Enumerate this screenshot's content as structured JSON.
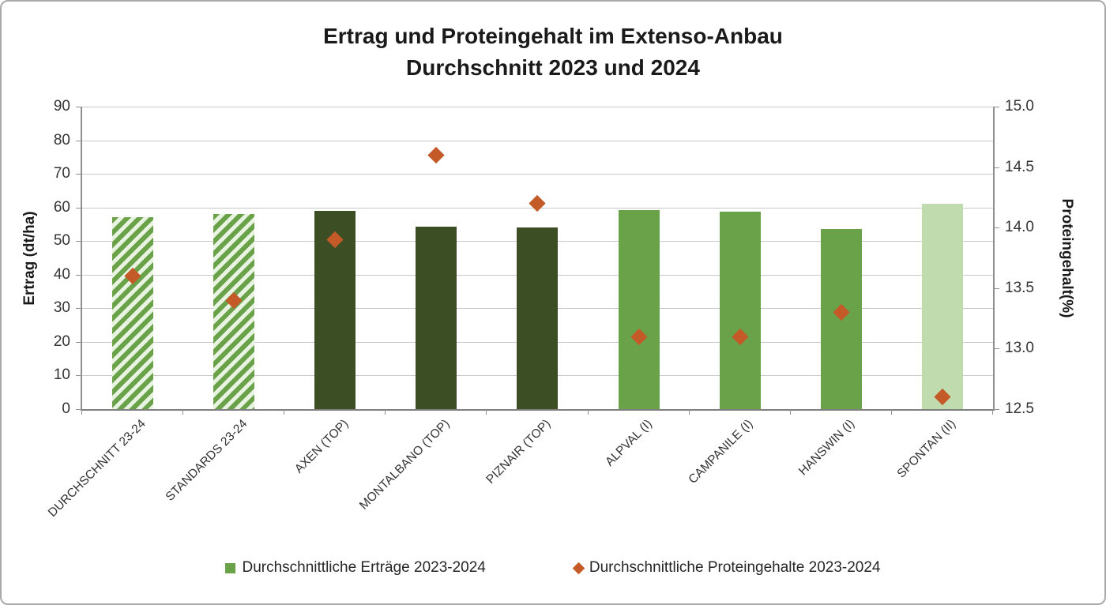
{
  "title": {
    "line1": "Ertrag und Proteingehalt im Extenso-Anbau",
    "line2": "Durchschnitt 2023 und 2024"
  },
  "chart_data": {
    "type": "bar",
    "subtype": "bar-with-scatter-overlay-dual-axis",
    "categories": [
      "DURCHSCHNITT 23-24",
      "STANDARDS 23-24",
      "AXEN (TOP)",
      "MONTALBANO (TOP)",
      "PIZNAIR (TOP)",
      "ALPVAL (I)",
      "CAMPANILE (I)",
      "HANSWIN (I)",
      "SPONTAN (II)"
    ],
    "series": [
      {
        "name": "Durchschnittliche Erträge 2023-2024",
        "type": "bar",
        "axis": "left",
        "values": [
          57.2,
          58.0,
          59.0,
          54.3,
          54.0,
          59.2,
          58.7,
          53.5,
          61.0
        ],
        "bar_styles": [
          "hatched",
          "hatched",
          "dark",
          "dark",
          "dark",
          "medium",
          "medium",
          "medium",
          "pale"
        ]
      },
      {
        "name": "Durchschnittliche Proteingehalte 2023-2024",
        "type": "scatter",
        "marker": "diamond",
        "axis": "right",
        "values": [
          13.6,
          13.4,
          13.9,
          14.6,
          14.2,
          13.1,
          13.1,
          13.3,
          12.6
        ]
      }
    ],
    "left_axis": {
      "title": "Ertrag (dt/ha)",
      "min": 0,
      "max": 90,
      "step": 10,
      "decimals": 0
    },
    "right_axis": {
      "title": "Proteingehalt(%)",
      "min": 12.5,
      "max": 15.0,
      "step": 0.5,
      "decimals": 1
    },
    "grid": true,
    "legend_position": "bottom",
    "colors": {
      "dark_green": "#3b4e24",
      "medium_green": "#6aa24a",
      "pale_green": "#c0dcae",
      "hatch_background": "#e9f3e1",
      "marker_orange": "#c45a28",
      "gridline": "#c9c9c9",
      "axis_line": "#8f8f8f"
    }
  },
  "legend": {
    "items": [
      {
        "label": "Durchschnittliche Erträge 2023-2024",
        "marker": "square",
        "color": "#6aa24a"
      },
      {
        "label": "Durchschnittliche Proteingehalte 2023-2024",
        "marker": "diamond",
        "color": "#c45a28"
      }
    ]
  }
}
